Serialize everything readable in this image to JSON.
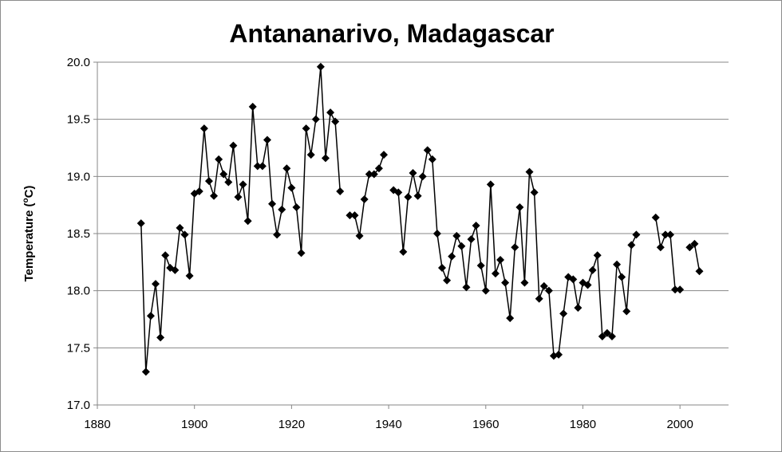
{
  "chart_data": {
    "type": "line",
    "title": "Antananarivo, Madagascar",
    "xlabel": "",
    "ylabel": "Temperature (",
    "ylabel_sup": "o",
    "ylabel_unit": "C)",
    "xlim": [
      1880,
      2010
    ],
    "ylim": [
      17.0,
      20.0
    ],
    "xticks": [
      "1880",
      "1900",
      "1920",
      "1940",
      "1960",
      "1980",
      "2000"
    ],
    "xtick_values": [
      1880,
      1900,
      1920,
      1940,
      1960,
      1980,
      2000
    ],
    "yticks": [
      "17.0",
      "17.5",
      "18.0",
      "18.5",
      "19.0",
      "19.5",
      "20.0"
    ],
    "ytick_values": [
      17.0,
      17.5,
      18.0,
      18.5,
      19.0,
      19.5,
      20.0
    ],
    "grid": "horizontal",
    "marker": "diamond",
    "line_color": "#000000",
    "marker_color": "#000000",
    "x": [
      1889,
      1890,
      1891,
      1892,
      1893,
      1894,
      1895,
      1896,
      1897,
      1898,
      1899,
      1900,
      1901,
      1902,
      1903,
      1904,
      1905,
      1906,
      1907,
      1908,
      1909,
      1910,
      1911,
      1912,
      1913,
      1914,
      1915,
      1916,
      1917,
      1918,
      1919,
      1920,
      1921,
      1922,
      1923,
      1924,
      1925,
      1926,
      1927,
      1928,
      1929,
      1930,
      1931,
      1932,
      1933,
      1934,
      1935,
      1936,
      1937,
      1938,
      1939,
      1940,
      1941,
      1942,
      1943,
      1944,
      1945,
      1946,
      1947,
      1948,
      1949,
      1950,
      1951,
      1952,
      1953,
      1954,
      1955,
      1956,
      1957,
      1958,
      1959,
      1960,
      1961,
      1962,
      1963,
      1964,
      1965,
      1966,
      1967,
      1968,
      1969,
      1970,
      1971,
      1972,
      1973,
      1974,
      1975,
      1976,
      1977,
      1978,
      1979,
      1980,
      1981,
      1982,
      1983,
      1984,
      1985,
      1986,
      1987,
      1988,
      1989,
      1990,
      1991,
      1992,
      1993,
      1994,
      1995,
      1996,
      1997,
      1998,
      1999,
      2000,
      2001,
      2002,
      2003,
      2004
    ],
    "y": [
      18.59,
      17.29,
      17.78,
      18.06,
      17.59,
      18.31,
      18.2,
      18.18,
      18.55,
      18.49,
      18.13,
      18.85,
      18.87,
      19.42,
      18.96,
      18.83,
      19.15,
      19.02,
      18.95,
      19.27,
      18.82,
      18.93,
      18.61,
      19.61,
      19.09,
      19.09,
      19.32,
      18.76,
      18.49,
      18.71,
      19.07,
      18.9,
      18.73,
      18.33,
      19.42,
      19.19,
      19.5,
      19.96,
      19.16,
      19.56,
      19.48,
      18.87,
      null,
      18.66,
      18.66,
      18.48,
      18.8,
      19.02,
      19.02,
      19.07,
      19.19,
      null,
      18.88,
      18.86,
      18.34,
      18.82,
      19.03,
      18.83,
      19.0,
      19.23,
      19.15,
      18.5,
      18.2,
      18.09,
      18.3,
      18.48,
      18.39,
      18.03,
      18.45,
      18.57,
      18.22,
      18.0,
      18.93,
      18.15,
      18.27,
      18.07,
      17.76,
      18.38,
      18.73,
      18.07,
      19.04,
      18.86,
      17.93,
      18.04,
      18.0,
      17.43,
      17.44,
      17.8,
      18.12,
      18.1,
      17.85,
      18.07,
      18.05,
      18.18,
      18.31,
      17.6,
      17.63,
      17.6,
      18.23,
      18.12,
      17.82,
      18.4,
      18.49,
      null,
      null,
      null,
      18.64,
      18.38,
      18.49,
      18.49,
      18.01,
      18.01,
      null,
      18.38,
      18.41,
      18.17
    ]
  }
}
